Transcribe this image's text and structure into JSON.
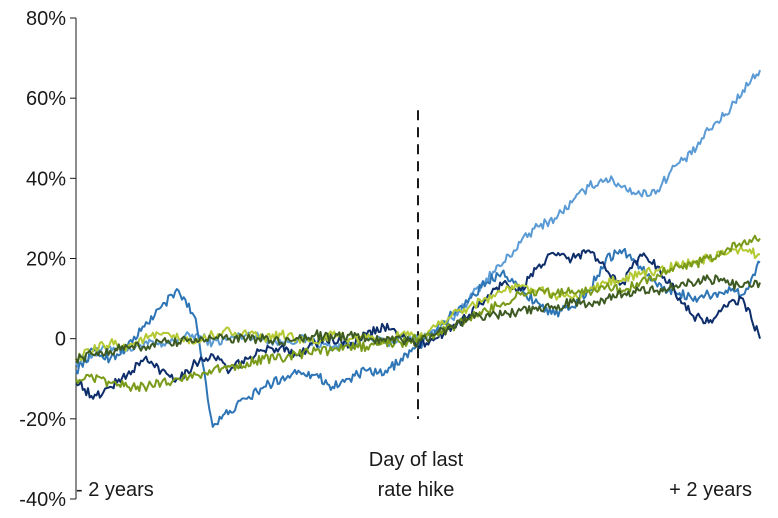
{
  "chart_data": {
    "type": "line",
    "title": "",
    "xlabel": "",
    "ylabel": "",
    "xlim": [
      -2,
      2
    ],
    "ylim": [
      -40,
      80
    ],
    "y_tick_values": [
      80,
      60,
      40,
      20,
      0,
      -20,
      -40
    ],
    "y_tick_labels": [
      "80%",
      "60%",
      "40%",
      "20%",
      "0",
      "-20%",
      "-40%"
    ],
    "grid": false,
    "legend": "none",
    "x_annotations": {
      "left": "- 2 years",
      "center_line1": "Day of last",
      "center_line2": "rate hike",
      "right": "+ 2 years"
    },
    "reference_line": {
      "x": 0,
      "y_from": -20,
      "y_to": 57,
      "style": "dashed",
      "color": "#1a1a1a"
    },
    "series": [
      {
        "color": "#5b9bd5",
        "x": [
          -2.0,
          -1.9,
          -1.8,
          -1.7,
          -1.6,
          -1.5,
          -1.4,
          -1.3,
          -1.2,
          -1.1,
          -1.0,
          -0.9,
          -0.8,
          -0.7,
          -0.6,
          -0.5,
          -0.4,
          -0.3,
          -0.2,
          -0.1,
          0.0,
          0.1,
          0.2,
          0.3,
          0.4,
          0.5,
          0.6,
          0.7,
          0.8,
          0.9,
          1.0,
          1.1,
          1.2,
          1.3,
          1.4,
          1.5,
          1.6,
          1.7,
          1.8,
          1.9,
          2.0
        ],
        "values": [
          -6,
          -4,
          -2,
          -3,
          -1,
          -2,
          0,
          1,
          -1,
          0,
          1,
          0,
          -1,
          0,
          -1,
          -2,
          -1,
          0,
          -1,
          0,
          0,
          2,
          5,
          10,
          15,
          19,
          24,
          28,
          30,
          34,
          38,
          40,
          38,
          36,
          37,
          43,
          46,
          52,
          56,
          62,
          67
        ]
      },
      {
        "color": "#2e75b6",
        "x": [
          -2.0,
          -1.9,
          -1.8,
          -1.7,
          -1.6,
          -1.5,
          -1.4,
          -1.3,
          -1.2,
          -1.1,
          -1.0,
          -0.9,
          -0.8,
          -0.7,
          -0.6,
          -0.5,
          -0.4,
          -0.3,
          -0.2,
          -0.1,
          0.0,
          0.1,
          0.2,
          0.3,
          0.4,
          0.5,
          0.6,
          0.7,
          0.8,
          0.9,
          1.0,
          1.1,
          1.2,
          1.3,
          1.4,
          1.5,
          1.6,
          1.7,
          1.8,
          1.9,
          2.0
        ],
        "values": [
          -8,
          -3,
          -5,
          -2,
          3,
          8,
          12,
          5,
          -22,
          -18,
          -15,
          -12,
          -10,
          -8,
          -9,
          -12,
          -10,
          -8,
          -9,
          -5,
          -2,
          2,
          6,
          10,
          14,
          17,
          12,
          9,
          6,
          8,
          12,
          20,
          22,
          18,
          13,
          12,
          10,
          11,
          12,
          11,
          19
        ]
      },
      {
        "color": "#0d2d6b",
        "x": [
          -2.0,
          -1.9,
          -1.8,
          -1.7,
          -1.6,
          -1.5,
          -1.4,
          -1.3,
          -1.2,
          -1.1,
          -1.0,
          -0.9,
          -0.8,
          -0.7,
          -0.6,
          -0.5,
          -0.4,
          -0.3,
          -0.2,
          -0.1,
          0.0,
          0.1,
          0.2,
          0.3,
          0.4,
          0.5,
          0.6,
          0.7,
          0.8,
          0.9,
          1.0,
          1.1,
          1.2,
          1.3,
          1.4,
          1.5,
          1.6,
          1.7,
          1.8,
          1.9,
          2.0
        ],
        "values": [
          -10,
          -15,
          -12,
          -9,
          -5,
          -8,
          -10,
          -6,
          -4,
          -8,
          -5,
          -3,
          -2,
          -4,
          -1,
          0,
          -2,
          1,
          3,
          1,
          -2,
          0,
          3,
          6,
          10,
          14,
          12,
          18,
          21,
          20,
          22,
          17,
          14,
          21,
          18,
          12,
          6,
          4,
          8,
          10,
          0
        ]
      },
      {
        "color": "#b5c934",
        "x": [
          -2.0,
          -1.9,
          -1.8,
          -1.7,
          -1.6,
          -1.5,
          -1.4,
          -1.3,
          -1.2,
          -1.1,
          -1.0,
          -0.9,
          -0.8,
          -0.7,
          -0.6,
          -0.5,
          -0.4,
          -0.3,
          -0.2,
          -0.1,
          0.0,
          0.1,
          0.2,
          0.3,
          0.4,
          0.5,
          0.6,
          0.7,
          0.8,
          0.9,
          1.0,
          1.1,
          1.2,
          1.3,
          1.4,
          1.5,
          1.6,
          1.7,
          1.8,
          1.9,
          2.0
        ],
        "values": [
          -5,
          -3,
          -1,
          -2,
          0,
          1,
          0,
          -1,
          1,
          2,
          1,
          0,
          1,
          0,
          -1,
          1,
          0,
          0,
          -1,
          1,
          0,
          3,
          6,
          8,
          10,
          12,
          13,
          12,
          11,
          10,
          12,
          14,
          15,
          16,
          17,
          18,
          19,
          20,
          21,
          22,
          21
        ]
      },
      {
        "color": "#7a9a1a",
        "x": [
          -2.0,
          -1.9,
          -1.8,
          -1.7,
          -1.6,
          -1.5,
          -1.4,
          -1.3,
          -1.2,
          -1.1,
          -1.0,
          -0.9,
          -0.8,
          -0.7,
          -0.6,
          -0.5,
          -0.4,
          -0.3,
          -0.2,
          -0.1,
          0.0,
          0.1,
          0.2,
          0.3,
          0.4,
          0.5,
          0.6,
          0.7,
          0.8,
          0.9,
          1.0,
          1.1,
          1.2,
          1.3,
          1.4,
          1.5,
          1.6,
          1.7,
          1.8,
          1.9,
          2.0
        ],
        "values": [
          -10,
          -10,
          -11,
          -12,
          -12,
          -11,
          -10,
          -9,
          -8,
          -7,
          -6,
          -5,
          -5,
          -4,
          -3,
          -3,
          -2,
          -2,
          -1,
          -1,
          0,
          1,
          3,
          5,
          7,
          9,
          11,
          12,
          11,
          12,
          12,
          13,
          12,
          14,
          16,
          18,
          18,
          20,
          22,
          24,
          25
        ]
      },
      {
        "color": "#3d5a22",
        "x": [
          -2.0,
          -1.9,
          -1.8,
          -1.7,
          -1.6,
          -1.5,
          -1.4,
          -1.3,
          -1.2,
          -1.1,
          -1.0,
          -0.9,
          -0.8,
          -0.7,
          -0.6,
          -0.5,
          -0.4,
          -0.3,
          -0.2,
          -0.1,
          0.0,
          0.1,
          0.2,
          0.3,
          0.4,
          0.5,
          0.6,
          0.7,
          0.8,
          0.9,
          1.0,
          1.1,
          1.2,
          1.3,
          1.4,
          1.5,
          1.6,
          1.7,
          1.8,
          1.9,
          2.0
        ],
        "values": [
          -5,
          -4,
          -3,
          -2,
          -2,
          -1,
          -1,
          0,
          0,
          0,
          0,
          0,
          -1,
          0,
          1,
          0,
          1,
          0,
          0,
          0,
          -1,
          1,
          3,
          5,
          6,
          6,
          7,
          7,
          8,
          9,
          9,
          10,
          11,
          12,
          12,
          13,
          14,
          15,
          14,
          13,
          14
        ]
      }
    ]
  }
}
